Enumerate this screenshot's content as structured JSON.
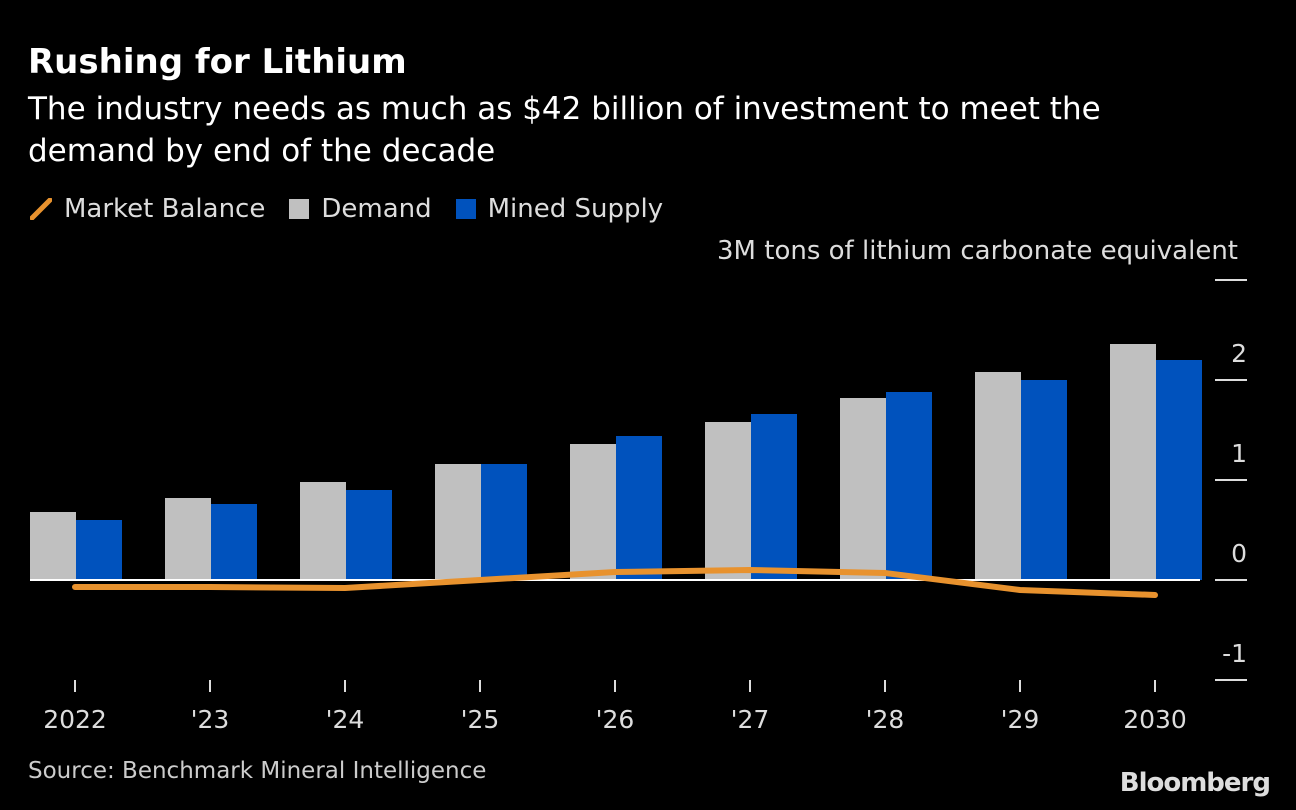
{
  "title": "Rushing for Lithium",
  "subtitle": "The industry needs as much as $42 billion of investment to meet the demand by end of the decade",
  "source": "Source: Benchmark Mineral Intelligence",
  "logo": "Bloomberg",
  "chart_data": {
    "type": "bar",
    "unit_label": "3M tons of lithium carbonate equivalent",
    "categories": [
      "2022",
      "'23",
      "'24",
      "'25",
      "'26",
      "'27",
      "'28",
      "'29",
      "2030"
    ],
    "ylim": [
      -1.0,
      3.0
    ],
    "yticks": [
      -1,
      0,
      1,
      2,
      3
    ],
    "ytick_labels": [
      "-1",
      "0",
      "1",
      "2",
      ""
    ],
    "legend_position": "top-left",
    "grid": false,
    "series": [
      {
        "name": "Market Balance",
        "type": "line",
        "color": "#e8922e",
        "values": [
          -0.07,
          -0.07,
          -0.08,
          0.0,
          0.08,
          0.1,
          0.07,
          -0.1,
          -0.15
        ]
      },
      {
        "name": "Demand",
        "type": "bar",
        "color": "#c0c0c0",
        "values": [
          0.68,
          0.82,
          0.98,
          1.16,
          1.36,
          1.58,
          1.82,
          2.08,
          2.36
        ]
      },
      {
        "name": "Mined Supply",
        "type": "bar",
        "color": "#0052bd",
        "values": [
          0.6,
          0.76,
          0.9,
          1.16,
          1.44,
          1.66,
          1.88,
          2.0,
          2.2
        ]
      }
    ]
  }
}
